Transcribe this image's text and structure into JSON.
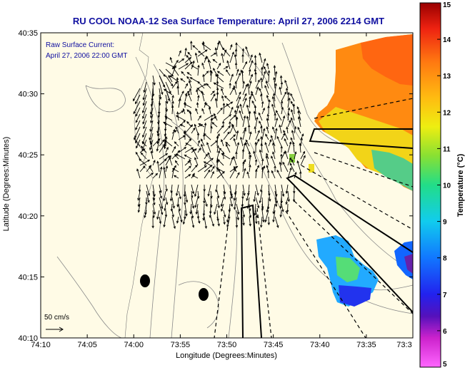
{
  "title": "RU COOL  NOAA-12  Sea Surface Temperature:  April 27, 2006 2214 GMT",
  "inset": {
    "line1": "Raw Surface Current:",
    "line2": "April 27, 2006 22:00 GMT"
  },
  "scale_label": "50 cm/s",
  "x_axis": {
    "label": "Longitude (Degrees:Minutes)",
    "ticks": [
      "74:10",
      "74:05",
      "74:00",
      "73:55",
      "73:50",
      "73:45",
      "73:40",
      "73:35",
      "73:3"
    ]
  },
  "y_axis": {
    "label": "Latitude (Degrees:Minutes)",
    "ticks": [
      "40:35",
      "40:30",
      "40:25",
      "40:20",
      "40:15",
      "40:10"
    ]
  },
  "colorbar": {
    "label": "Temperature (°C)",
    "ticks": [
      "15",
      "14",
      "13",
      "12",
      "11",
      "10",
      "9",
      "8",
      "7",
      "6",
      "5"
    ],
    "min": 5,
    "max": 15
  },
  "colors": {
    "title": "#1010a0",
    "land": "#fffbe6",
    "vector": "#000000",
    "bathymetry": "#888888"
  }
}
